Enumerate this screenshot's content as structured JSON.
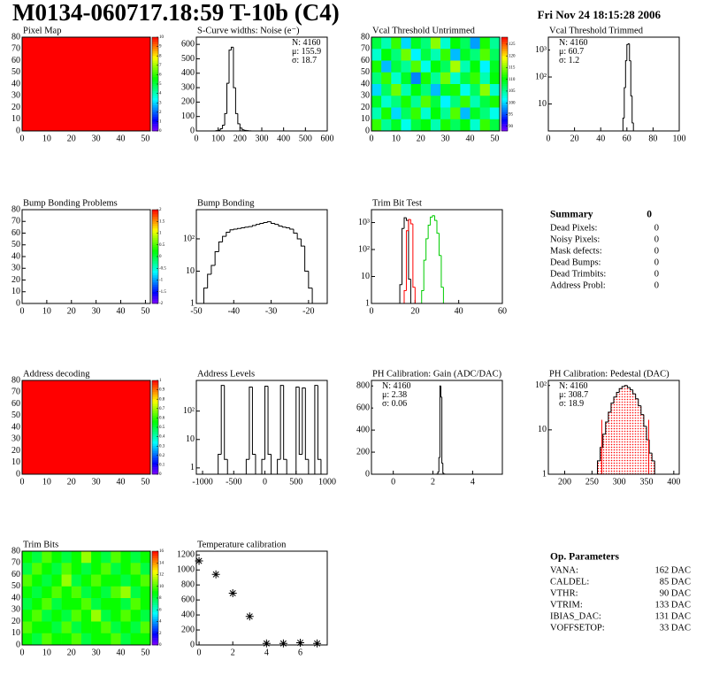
{
  "header": {
    "title": "M0134-060717.18:59 T-10b (C4)",
    "date": "Fri Nov 24 18:15:28 2006"
  },
  "chart_data": [
    {
      "type": "heatmap",
      "title": "Pixel Map",
      "xlim": [
        0,
        52
      ],
      "ylim": [
        0,
        80
      ],
      "xticks": [
        0,
        10,
        20,
        30,
        40,
        50
      ],
      "yticks": [
        0,
        10,
        20,
        30,
        40,
        50,
        60,
        70,
        80
      ],
      "zlim": [
        0,
        10
      ],
      "zticks": [
        0,
        1,
        2,
        3,
        4,
        5,
        6,
        7,
        8,
        9,
        10
      ],
      "z": [
        [
          10
        ]
      ]
    },
    {
      "type": "histogram",
      "title": "S-Curve widths: Noise (e⁻)",
      "xlim": [
        0,
        600
      ],
      "ylim": [
        0,
        650
      ],
      "xticks": [
        0,
        100,
        200,
        300,
        400,
        500,
        600
      ],
      "yticks": [
        0,
        100,
        200,
        300,
        400,
        500,
        600
      ],
      "color": "#000000",
      "bins": [
        90,
        100,
        110,
        120,
        130,
        140,
        150,
        160,
        170,
        180,
        190,
        200,
        210,
        220,
        230,
        240,
        250
      ],
      "values": [
        2,
        5,
        15,
        40,
        120,
        330,
        560,
        580,
        300,
        120,
        50,
        20,
        8,
        4,
        2,
        1
      ],
      "stats_corner": "right",
      "stats": [
        {
          "label": "N:",
          "value": 4160
        },
        {
          "label": "μ:",
          "value": 155.9
        },
        {
          "label": "σ:",
          "value": 18.7
        }
      ]
    },
    {
      "type": "heatmap",
      "title": "Vcal Threshold Untrimmed",
      "xlim": [
        0,
        52
      ],
      "ylim": [
        0,
        80
      ],
      "xticks": [
        0,
        10,
        20,
        30,
        40,
        50
      ],
      "yticks": [
        0,
        10,
        20,
        30,
        40,
        50,
        60,
        70,
        80
      ],
      "zlim": [
        88,
        128
      ],
      "zticks": [
        90,
        95,
        100,
        105,
        110,
        115,
        120,
        125
      ],
      "z": [
        [
          108,
          104,
          112,
          100,
          109,
          106,
          115,
          103,
          110,
          107,
          98,
          111,
          105
        ],
        [
          103,
          110,
          106,
          114,
          101,
          108,
          104,
          112,
          99,
          109,
          106,
          113,
          107
        ],
        [
          111,
          99,
          108,
          105,
          113,
          102,
          110,
          107,
          116,
          104,
          110,
          101,
          109
        ],
        [
          106,
          112,
          103,
          109,
          97,
          111,
          105,
          114,
          103,
          108,
          112,
          104,
          110
        ],
        [
          100,
          107,
          114,
          104,
          110,
          106,
          99,
          109,
          111,
          102,
          107,
          115,
          103
        ],
        [
          109,
          103,
          106,
          111,
          105,
          113,
          108,
          101,
          106,
          112,
          104,
          108,
          111
        ],
        [
          104,
          111,
          100,
          107,
          112,
          103,
          110,
          105,
          113,
          99,
          109,
          106,
          102
        ],
        [
          112,
          105,
          109,
          102,
          108,
          110,
          104,
          111,
          107,
          110,
          103,
          112,
          108
        ]
      ]
    },
    {
      "type": "histogram",
      "title": "Vcal Threshold Trimmed",
      "log": true,
      "xlim": [
        0,
        100
      ],
      "ylim": [
        1,
        3000
      ],
      "xticks": [
        0,
        20,
        40,
        60,
        80,
        100
      ],
      "yticks": [
        10,
        {
          "value": 100,
          "label": "10²"
        },
        {
          "value": 1000,
          "label": "10³"
        }
      ],
      "color": "#000000",
      "bins": [
        56,
        57,
        58,
        59,
        60,
        61,
        62,
        63,
        64,
        65,
        66,
        67,
        68,
        69,
        70,
        71,
        72,
        73,
        74,
        75,
        76,
        77,
        78,
        79,
        80,
        81
      ],
      "values": [
        0,
        3,
        40,
        400,
        1600,
        1700,
        400,
        20,
        2,
        0,
        0,
        0,
        0,
        0,
        0,
        0,
        0,
        0,
        0,
        0,
        0,
        0,
        0,
        1,
        0
      ],
      "stats_corner": "left",
      "stats": [
        {
          "label": "N:",
          "value": 4160
        },
        {
          "label": "μ:",
          "value": 60.7
        },
        {
          "label": "σ:",
          "value": 1.2
        }
      ]
    },
    {
      "type": "heatmap",
      "title": "Bump Bonding Problems",
      "xlim": [
        0,
        52
      ],
      "ylim": [
        0,
        80
      ],
      "xticks": [
        0,
        10,
        20,
        30,
        40,
        50
      ],
      "yticks": [
        0,
        10,
        20,
        30,
        40,
        50,
        60,
        70,
        80
      ],
      "zlim": [
        -2,
        2
      ],
      "zticks": [
        -2,
        -1.5,
        -1,
        -0.5,
        0,
        0.5,
        1,
        1.5,
        2
      ],
      "z": []
    },
    {
      "type": "histogram",
      "title": "Bump Bonding",
      "log": true,
      "xlim": [
        -50,
        -15
      ],
      "ylim": [
        1,
        800
      ],
      "xticks": [
        -50,
        -40,
        -30,
        -20
      ],
      "yticks": [
        1,
        10,
        {
          "value": 100,
          "label": "10²"
        }
      ],
      "color": "#000000",
      "bins": [
        -49,
        -48,
        -47,
        -46,
        -45,
        -44,
        -43,
        -42,
        -41,
        -40,
        -39,
        -38,
        -37,
        -36,
        -35,
        -34,
        -33,
        -32,
        -31,
        -30,
        -29,
        -28,
        -27,
        -26,
        -25,
        -24,
        -23,
        -22,
        -21,
        -20,
        -19,
        -18
      ],
      "values": [
        1,
        3,
        8,
        15,
        40,
        80,
        120,
        160,
        190,
        200,
        210,
        220,
        230,
        240,
        260,
        280,
        300,
        320,
        340,
        300,
        280,
        250,
        230,
        220,
        200,
        150,
        100,
        60,
        10,
        3,
        1
      ]
    },
    {
      "type": "histogram",
      "title": "Trim Bit Test",
      "log": true,
      "xlim": [
        0,
        60
      ],
      "ylim": [
        1,
        3000
      ],
      "xticks": [
        0,
        20,
        40,
        60
      ],
      "yticks": [
        1,
        10,
        {
          "value": 100,
          "label": "10²"
        },
        {
          "value": 1000,
          "label": "10³"
        }
      ],
      "bins": [
        10,
        11,
        12,
        13,
        14,
        15,
        16,
        17,
        18,
        19,
        20,
        21,
        22,
        23,
        24,
        25,
        26,
        27,
        28,
        29,
        30,
        31,
        32,
        33,
        34,
        35,
        36
      ],
      "series": [
        {
          "color": "#000000",
          "values": [
            0,
            0,
            0,
            5,
            600,
            1500,
            1200,
            8,
            0,
            0,
            0,
            0,
            0,
            0,
            0,
            0,
            0,
            0,
            0,
            0,
            0,
            0,
            0,
            0,
            0,
            0
          ]
        },
        {
          "color": "#ff0000",
          "values": [
            0,
            0,
            0,
            0,
            0,
            3,
            500,
            1300,
            900,
            4,
            0,
            0,
            0,
            0,
            0,
            0,
            0,
            0,
            0,
            0,
            0,
            0,
            0,
            0,
            0,
            0
          ]
        },
        {
          "color": "#00cc00",
          "values": [
            0,
            0,
            0,
            0,
            0,
            0,
            0,
            0,
            0,
            0,
            0,
            0,
            0,
            3,
            40,
            250,
            800,
            1600,
            1800,
            1200,
            400,
            60,
            4,
            0,
            0,
            0
          ]
        }
      ]
    },
    {
      "type": "heatmap",
      "title": "Address decoding",
      "xlim": [
        0,
        52
      ],
      "ylim": [
        0,
        80
      ],
      "xticks": [
        0,
        10,
        20,
        30,
        40,
        50
      ],
      "yticks": [
        0,
        10,
        20,
        30,
        40,
        50,
        60,
        70,
        80
      ],
      "zlim": [
        0,
        1
      ],
      "zticks": [
        0,
        0.1,
        0.2,
        0.3,
        0.4,
        0.5,
        0.6,
        0.7,
        0.8,
        0.9,
        1
      ],
      "z": [
        [
          1
        ]
      ]
    },
    {
      "type": "histogram",
      "title": "Address Levels",
      "log": true,
      "xlim": [
        -1100,
        1000
      ],
      "ylim": [
        0.6,
        1200
      ],
      "xticks": [
        -1000,
        -500,
        0,
        500,
        1000
      ],
      "yticks": [
        1,
        10,
        {
          "value": 100,
          "label": "10²"
        }
      ],
      "color": "#000000",
      "bins": [
        -1000,
        -950,
        -900,
        -850,
        -800,
        -750,
        -700,
        -650,
        -600,
        -550,
        -500,
        -450,
        -400,
        -350,
        -300,
        -250,
        -200,
        -150,
        -100,
        -50,
        0,
        50,
        100,
        150,
        200,
        250,
        300,
        350,
        400,
        450,
        500,
        550,
        600,
        650,
        700,
        750,
        800,
        850,
        900,
        950,
        1000
      ],
      "values": [
        0,
        0,
        0,
        0,
        0,
        3,
        800,
        2,
        0,
        0,
        0,
        0,
        0,
        0,
        2,
        700,
        3,
        0,
        0,
        2,
        750,
        3,
        0,
        0,
        2,
        800,
        2,
        0,
        0,
        0,
        700,
        3,
        650,
        2,
        0,
        0,
        800,
        2,
        0,
        0
      ]
    },
    {
      "type": "histogram",
      "title": "PH Calibration: Gain (ADC/DAC)",
      "xlim": [
        -1.1,
        5.5
      ],
      "ylim": [
        0,
        850
      ],
      "xticks": [
        0,
        2,
        4
      ],
      "yticks": [
        0,
        200,
        400,
        600,
        800
      ],
      "color": "#000000",
      "bins": [
        2.2,
        2.25,
        2.3,
        2.35,
        2.4,
        2.45,
        2.5,
        2.55,
        2.6
      ],
      "values": [
        2,
        20,
        150,
        800,
        700,
        100,
        10,
        1
      ],
      "stats_corner": "left",
      "stats": [
        {
          "label": "N:",
          "value": 4160
        },
        {
          "label": "μ:",
          "value": 2.38
        },
        {
          "label": "σ:",
          "value": 0.06
        }
      ]
    },
    {
      "type": "histogram",
      "title": "PH Calibration: Pedestal (DAC)",
      "log": true,
      "xlim": [
        170,
        410
      ],
      "ylim": [
        1,
        130
      ],
      "xticks": [
        200,
        250,
        300,
        350,
        400
      ],
      "yticks": [
        1,
        10,
        {
          "value": 100,
          "label": "10²"
        }
      ],
      "color": "#000000",
      "fill": "#ff0000",
      "bins": [
        255,
        260,
        265,
        270,
        275,
        280,
        285,
        290,
        295,
        300,
        305,
        310,
        315,
        320,
        325,
        330,
        335,
        340,
        345,
        350,
        355,
        360,
        365,
        370
      ],
      "values": [
        1,
        2,
        4,
        8,
        15,
        25,
        40,
        55,
        70,
        85,
        95,
        100,
        90,
        80,
        65,
        50,
        35,
        22,
        12,
        6,
        3,
        2,
        1
      ],
      "cut_lines": [
        268,
        354
      ],
      "cut_color": "#ff0000",
      "stats_corner": "left",
      "stats": [
        {
          "label": "N:",
          "value": 4160,
          "color": "#000000"
        },
        {
          "label": "μ:",
          "value": 308.7,
          "color": "#ff0000"
        },
        {
          "label": "σ:",
          "value": 18.9,
          "color": "#ff0000"
        }
      ]
    },
    {
      "type": "heatmap",
      "title": "Trim Bits",
      "xlim": [
        0,
        52
      ],
      "ylim": [
        0,
        80
      ],
      "xticks": [
        0,
        10,
        20,
        30,
        40,
        50
      ],
      "yticks": [
        0,
        10,
        20,
        30,
        40,
        50,
        60,
        70,
        80
      ],
      "zlim": [
        0,
        16
      ],
      "zticks": [
        0,
        2,
        4,
        6,
        8,
        10,
        12,
        14,
        16
      ],
      "z": [
        [
          9,
          8,
          10,
          9,
          8,
          9,
          11,
          9,
          8,
          10,
          9,
          8,
          9
        ],
        [
          8,
          10,
          9,
          8,
          10,
          9,
          8,
          9,
          10,
          8,
          9,
          10,
          8
        ],
        [
          10,
          9,
          8,
          9,
          11,
          8,
          9,
          10,
          9,
          9,
          8,
          9,
          10
        ],
        [
          9,
          8,
          9,
          10,
          9,
          10,
          8,
          9,
          8,
          10,
          11,
          8,
          9
        ],
        [
          8,
          9,
          10,
          8,
          9,
          9,
          10,
          8,
          9,
          9,
          8,
          10,
          9
        ],
        [
          9,
          10,
          8,
          9,
          8,
          10,
          9,
          11,
          8,
          9,
          10,
          9,
          8
        ],
        [
          10,
          9,
          9,
          8,
          10,
          8,
          9,
          9,
          10,
          8,
          9,
          8,
          10
        ],
        [
          9,
          8,
          10,
          9,
          9,
          10,
          8,
          9,
          9,
          10,
          8,
          9,
          9
        ]
      ]
    },
    {
      "type": "scatter",
      "title": "Temperature calibration",
      "xlim": [
        -0.16,
        7.6
      ],
      "ylim": [
        0,
        1250
      ],
      "xticks": [
        0,
        2,
        4,
        6
      ],
      "yticks": [
        0,
        200,
        400,
        600,
        800,
        1000,
        1200
      ],
      "color": "#000000",
      "x": [
        0,
        1,
        2,
        3,
        4,
        5,
        6,
        7
      ],
      "values": [
        1120,
        940,
        690,
        380,
        20,
        20,
        30,
        20
      ]
    }
  ],
  "summary": {
    "title": "Summary",
    "value": 0,
    "rows": [
      {
        "label": "Dead Pixels:",
        "value": 0
      },
      {
        "label": "Noisy Pixels:",
        "value": 0
      },
      {
        "label": "Mask defects:",
        "value": 0
      },
      {
        "label": "Dead Bumps:",
        "value": 0
      },
      {
        "label": "Dead Trimbits:",
        "value": 0
      },
      {
        "label": "Address Probl:",
        "value": 0
      }
    ]
  },
  "parameters": {
    "title": "Op. Parameters",
    "rows": [
      {
        "label": "VANA:",
        "value": "162 DAC"
      },
      {
        "label": "CALDEL:",
        "value": "85 DAC"
      },
      {
        "label": "VTHR:",
        "value": "90 DAC"
      },
      {
        "label": "VTRIM:",
        "value": "133 DAC"
      },
      {
        "label": "IBIAS_DAC:",
        "value": "131 DAC"
      },
      {
        "label": "VOFFSETOP:",
        "value": "33 DAC"
      }
    ]
  }
}
